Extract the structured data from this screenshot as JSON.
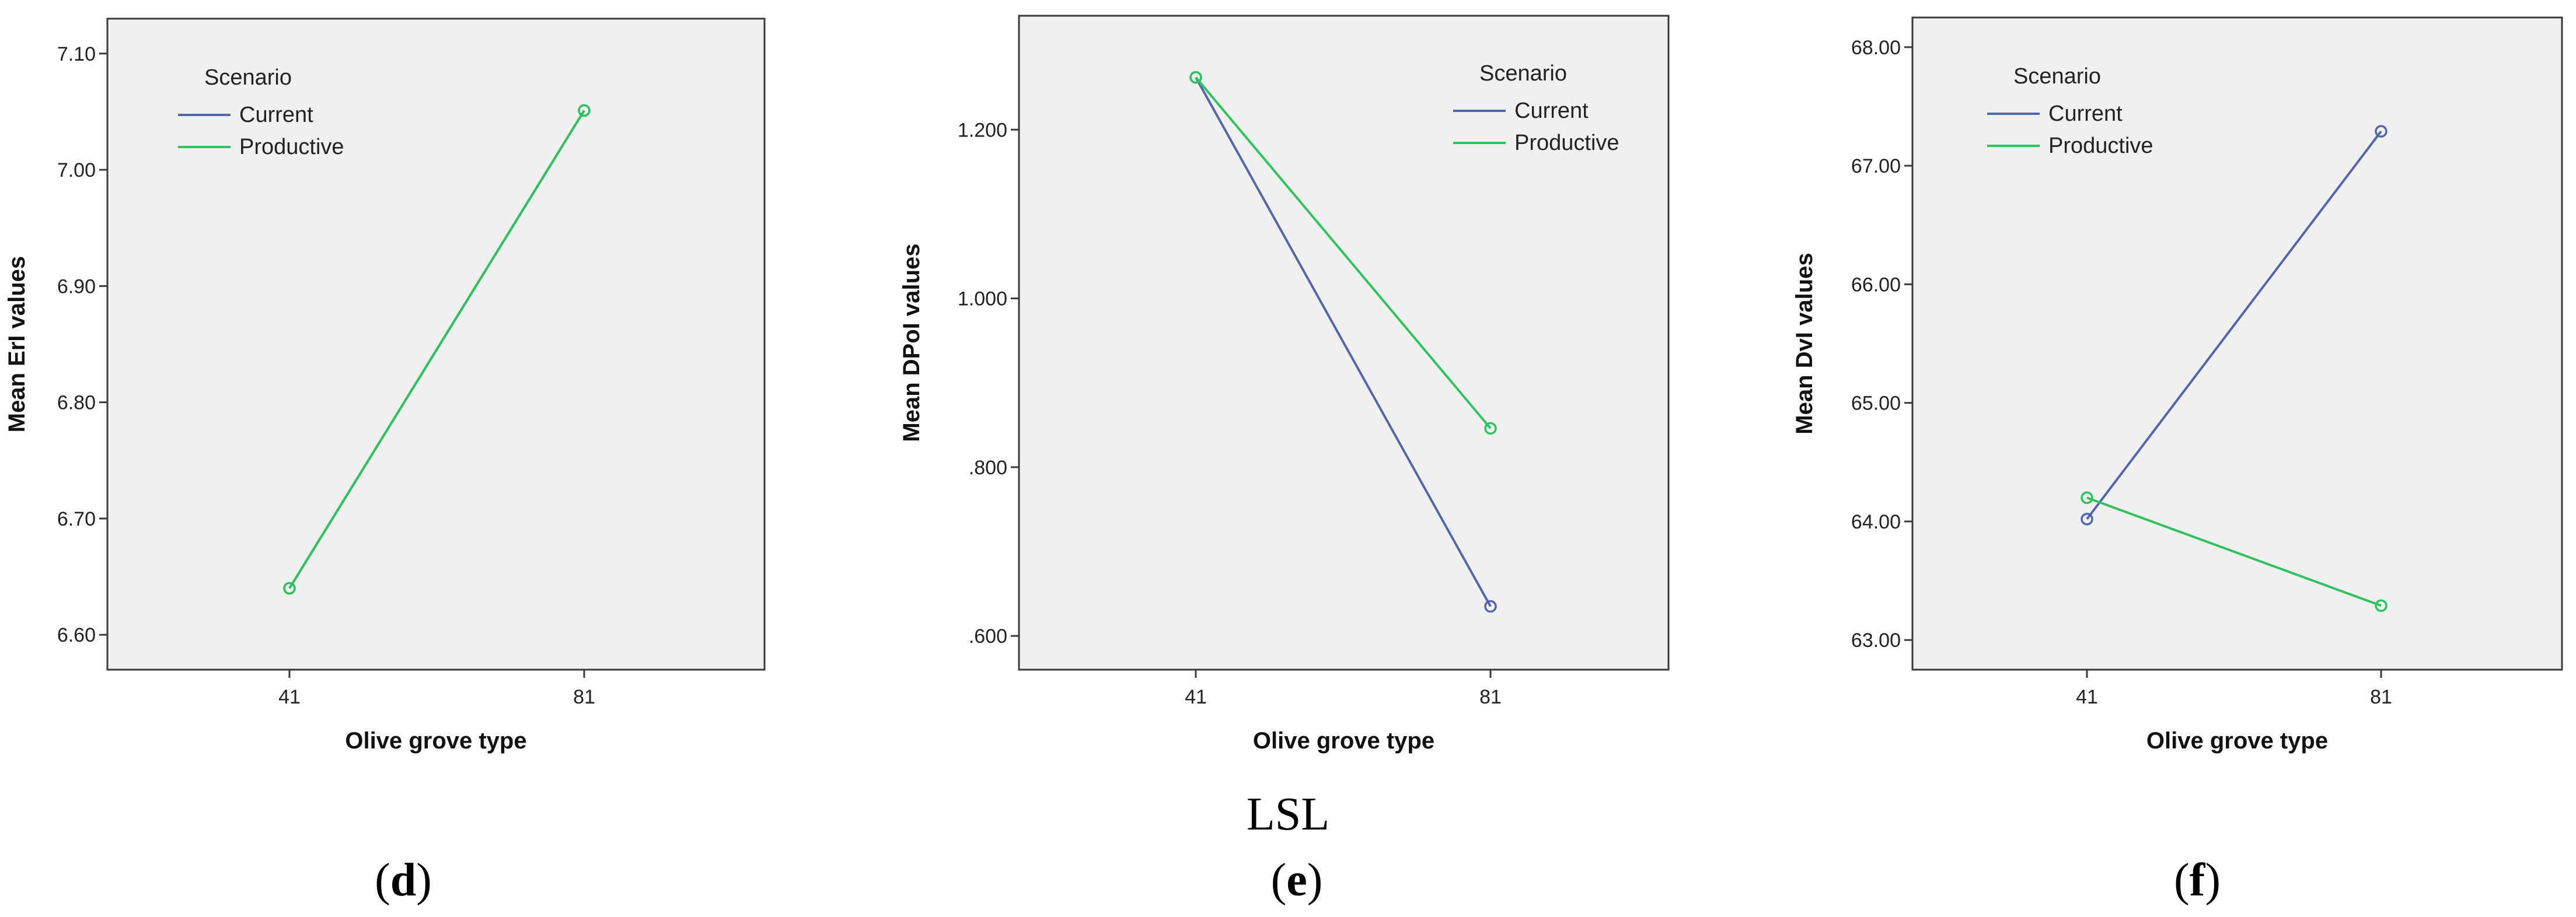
{
  "figure": {
    "group_label": "LSL",
    "panel_captions": [
      {
        "open": "(",
        "letter": "d",
        "close": ")"
      },
      {
        "open": "(",
        "letter": "e",
        "close": ")"
      },
      {
        "open": "(",
        "letter": "f",
        "close": ")"
      }
    ]
  },
  "colors": {
    "plot_bg": "#f0f0f0",
    "frame": "#3a3a3a",
    "current": "#5465b0",
    "productive": "#2ec35d"
  },
  "chart_data": [
    {
      "type": "line",
      "panel": "d",
      "xlabel": "Olive grove type",
      "ylabel": "Mean ErI values",
      "categories": [
        "41",
        "81"
      ],
      "ylim": [
        6.57,
        7.13
      ],
      "yticks": [
        "6.60",
        "6.70",
        "6.80",
        "6.90",
        "7.00",
        "7.10"
      ],
      "ytick_values": [
        6.6,
        6.7,
        6.8,
        6.9,
        7.0,
        7.1
      ],
      "grid": false,
      "legend": {
        "title": "Scenario",
        "position": "top-left"
      },
      "series": [
        {
          "name": "Current",
          "color_key": "current",
          "values": [
            6.64,
            7.051
          ]
        },
        {
          "name": "Productive",
          "color_key": "productive",
          "values": [
            6.64,
            7.051
          ]
        }
      ]
    },
    {
      "type": "line",
      "panel": "e",
      "xlabel": "Olive grove type",
      "ylabel": "Mean DPoI values",
      "categories": [
        "41",
        "81"
      ],
      "ylim": [
        0.56,
        1.335
      ],
      "yticks": [
        ".600",
        ".800",
        "1.000",
        "1.200"
      ],
      "ytick_values": [
        0.6,
        0.8,
        1.0,
        1.2
      ],
      "grid": false,
      "legend": {
        "title": "Scenario",
        "position": "top-right"
      },
      "series": [
        {
          "name": "Current",
          "color_key": "current",
          "values": [
            1.262,
            0.635
          ]
        },
        {
          "name": "Productive",
          "color_key": "productive",
          "values": [
            1.262,
            0.846
          ]
        }
      ]
    },
    {
      "type": "line",
      "panel": "f",
      "xlabel": "Olive grove type",
      "ylabel": "Mean DvI values",
      "categories": [
        "41",
        "81"
      ],
      "ylim": [
        62.75,
        68.25
      ],
      "yticks": [
        "63.00",
        "64.00",
        "65.00",
        "66.00",
        "67.00",
        "68.00"
      ],
      "ytick_values": [
        63,
        64,
        65,
        66,
        67,
        68
      ],
      "grid": false,
      "legend": {
        "title": "Scenario",
        "position": "top-left"
      },
      "series": [
        {
          "name": "Current",
          "color_key": "current",
          "values": [
            64.02,
            67.29
          ]
        },
        {
          "name": "Productive",
          "color_key": "productive",
          "values": [
            64.2,
            63.29
          ]
        }
      ]
    }
  ]
}
